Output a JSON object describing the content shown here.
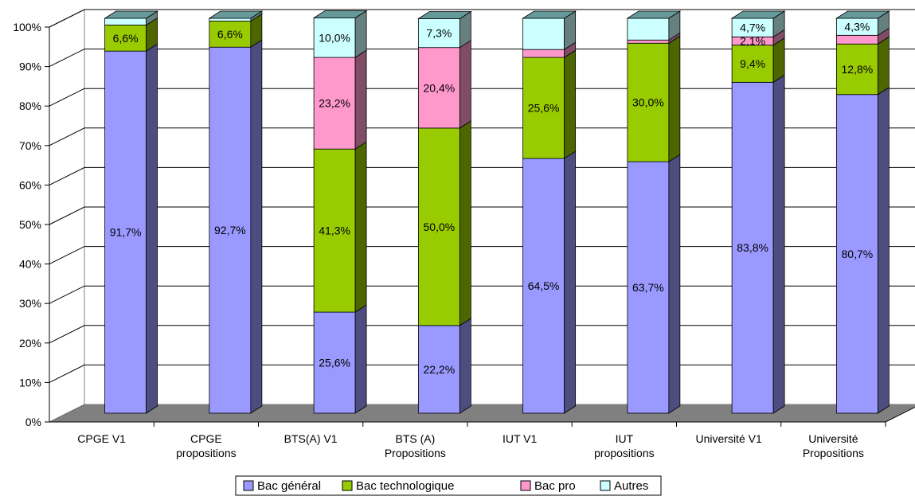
{
  "chart_data": {
    "type": "bar",
    "stacked": true,
    "three_d": true,
    "categories": [
      [
        "CPGE V1"
      ],
      [
        "CPGE",
        "propositions"
      ],
      [
        "BTS(A) V1"
      ],
      [
        "BTS (A)",
        "Propositions"
      ],
      [
        "IUT V1"
      ],
      [
        "IUT",
        "propositions"
      ],
      [
        "Université V1"
      ],
      [
        "Université",
        "Propositions"
      ]
    ],
    "series": [
      {
        "name": "Bac général",
        "color": "#9999ff",
        "values": [
          91.7,
          92.7,
          25.6,
          22.2,
          64.5,
          63.7,
          83.8,
          80.7
        ],
        "labels": [
          "91,7%",
          "92,7%",
          "25,6%",
          "22,2%",
          "64,5%",
          "63,7%",
          "83,8%",
          "80,7%"
        ]
      },
      {
        "name": "Bac technologique",
        "color": "#99cc00",
        "values": [
          6.6,
          6.6,
          41.3,
          50.0,
          25.6,
          30.0,
          9.4,
          12.8
        ],
        "labels": [
          "6,6%",
          "6,6%",
          "41,3%",
          "50,0%",
          "25,6%",
          "30,0%",
          "9,4%",
          "12,8%"
        ]
      },
      {
        "name": "Bac pro",
        "color": "#ff99cc",
        "values": [
          0,
          0,
          23.2,
          20.4,
          2.0,
          0.8,
          2.1,
          2.2
        ],
        "labels": [
          "",
          "",
          "23,2%",
          "20,4%",
          "",
          "",
          "2,1%",
          ""
        ]
      },
      {
        "name": "Autres",
        "color": "#ccffff",
        "values": [
          1.7,
          0.7,
          10.0,
          7.3,
          7.9,
          5.5,
          4.7,
          4.3
        ],
        "labels": [
          "",
          "",
          "10,0%",
          "7,3%",
          "",
          "",
          "4,7%",
          "4,3%"
        ]
      }
    ],
    "y_ticks": [
      "0%",
      "10%",
      "20%",
      "30%",
      "40%",
      "50%",
      "60%",
      "70%",
      "80%",
      "90%",
      "100%"
    ],
    "ylim": [
      0,
      100
    ],
    "grid": true,
    "legend": "bottom"
  }
}
